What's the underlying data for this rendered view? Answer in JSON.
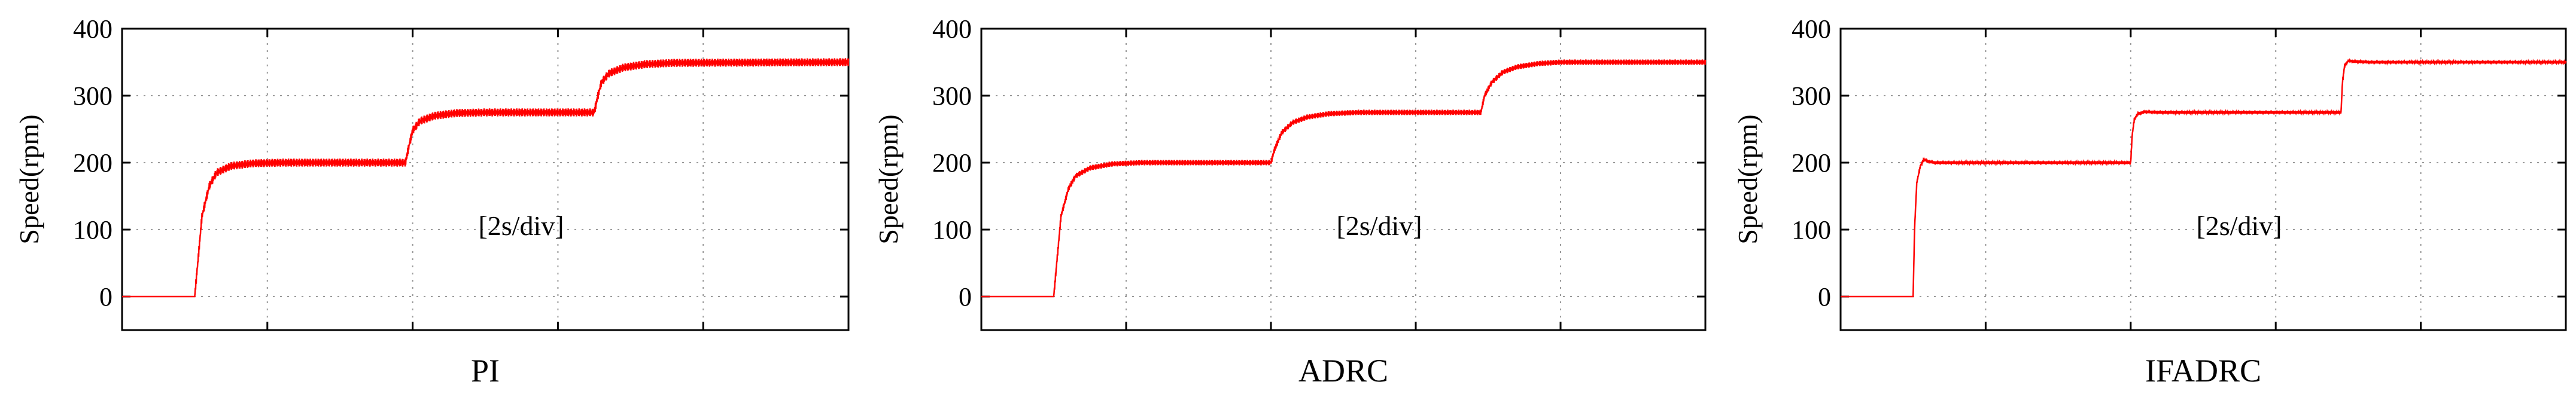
{
  "figure": {
    "annotation": "[2s/div]",
    "line_color": "#ff0000"
  },
  "chart_data": [
    {
      "type": "line",
      "caption": "PI",
      "ylabel": "Speed(rpm)",
      "xlabel": "",
      "annotation": "[2s/div]",
      "ylim": [
        -50,
        400
      ],
      "yticks": [
        0,
        100,
        200,
        300,
        400
      ],
      "xlim": [
        0,
        10
      ],
      "x_divisions": 5,
      "grid": true,
      "series": [
        {
          "color": "#ff0000",
          "x": [
            0,
            1.0,
            1.05,
            1.1,
            1.2,
            1.3,
            1.5,
            1.8,
            2.2,
            3.9,
            3.95,
            4.0,
            4.1,
            4.3,
            4.6,
            5.0,
            6.5,
            6.55,
            6.6,
            6.7,
            6.9,
            7.2,
            7.6,
            10
          ],
          "y": [
            0,
            0,
            60,
            120,
            165,
            185,
            195,
            199,
            200,
            200,
            225,
            248,
            262,
            270,
            274,
            275,
            275,
            300,
            320,
            333,
            342,
            347,
            349,
            350
          ],
          "ripple_amplitude": 6
        }
      ]
    },
    {
      "type": "line",
      "caption": "ADRC",
      "ylabel": "Speed(rpm)",
      "xlabel": "",
      "annotation": "[2s/div]",
      "ylim": [
        -50,
        400
      ],
      "yticks": [
        0,
        100,
        200,
        300,
        400
      ],
      "xlim": [
        0,
        10
      ],
      "x_divisions": 5,
      "grid": true,
      "series": [
        {
          "color": "#ff0000",
          "x": [
            0,
            1.0,
            1.05,
            1.1,
            1.2,
            1.3,
            1.5,
            1.8,
            2.2,
            4.0,
            4.05,
            4.15,
            4.3,
            4.5,
            4.8,
            5.2,
            6.9,
            6.95,
            7.05,
            7.2,
            7.4,
            7.7,
            8.0,
            10
          ],
          "y": [
            0,
            0,
            60,
            120,
            160,
            180,
            192,
            198,
            200,
            200,
            220,
            245,
            260,
            268,
            273,
            275,
            275,
            300,
            320,
            335,
            343,
            348,
            350,
            350
          ],
          "ripple_amplitude": 4
        }
      ]
    },
    {
      "type": "line",
      "caption": "IFADRC",
      "ylabel": "Speed(rpm)",
      "xlabel": "",
      "annotation": "[2s/div]",
      "ylim": [
        -50,
        400
      ],
      "yticks": [
        0,
        100,
        200,
        300,
        400
      ],
      "xlim": [
        0,
        10
      ],
      "x_divisions": 5,
      "grid": true,
      "series": [
        {
          "color": "#ff0000",
          "x": [
            0,
            1.0,
            1.02,
            1.05,
            1.1,
            1.15,
            1.2,
            1.3,
            1.5,
            4.0,
            4.02,
            4.05,
            4.1,
            4.2,
            4.4,
            6.9,
            6.92,
            6.95,
            7.0,
            7.1,
            7.3,
            10
          ],
          "y": [
            0,
            0,
            100,
            170,
            195,
            205,
            202,
            200,
            200,
            200,
            240,
            265,
            273,
            276,
            275,
            275,
            320,
            345,
            352,
            351,
            350,
            350
          ],
          "ripple_amplitude": 2
        }
      ]
    }
  ]
}
